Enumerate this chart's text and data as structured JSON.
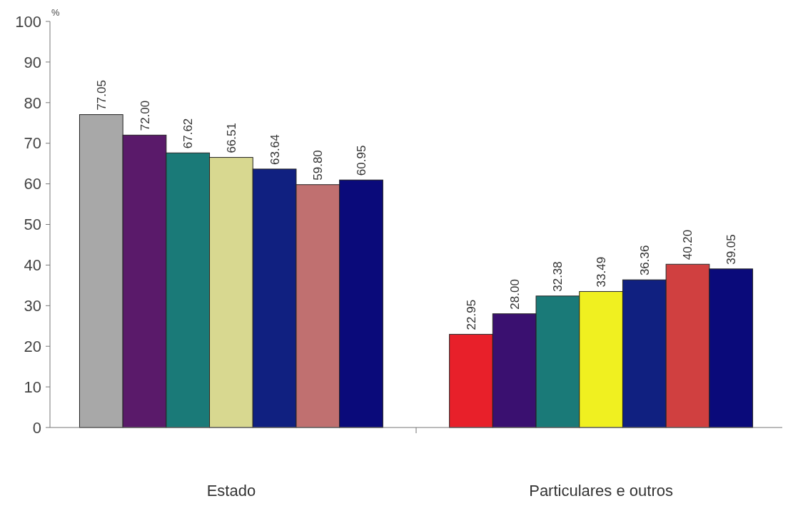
{
  "chart_data": {
    "type": "bar",
    "ylabel": "%",
    "categories": [
      "Estado",
      "Particulares e outros"
    ],
    "ylim": [
      0,
      100
    ],
    "yticks": [
      0,
      10,
      20,
      30,
      40,
      50,
      60,
      70,
      80,
      90,
      100
    ],
    "grid": false,
    "series": [
      {
        "colors": [
          "#a8a8a8",
          "#e8202a"
        ],
        "values": [
          77.05,
          22.95
        ],
        "value_labels": [
          "77.05",
          "22.95"
        ]
      },
      {
        "colors": [
          "#5a1a6a",
          "#3a1070"
        ],
        "values": [
          72.0,
          28.0
        ],
        "value_labels": [
          "72.00",
          "28.00"
        ]
      },
      {
        "colors": [
          "#1a7a78",
          "#1a7a78"
        ],
        "values": [
          67.62,
          32.38
        ],
        "value_labels": [
          "67.62",
          "32.38"
        ]
      },
      {
        "colors": [
          "#d8d890",
          "#f0f020"
        ],
        "values": [
          66.51,
          33.49
        ],
        "value_labels": [
          "66.51",
          "33.49"
        ]
      },
      {
        "colors": [
          "#102080",
          "#102080"
        ],
        "values": [
          63.64,
          36.36
        ],
        "value_labels": [
          "63.64",
          "36.36"
        ]
      },
      {
        "colors": [
          "#c07070",
          "#d04040"
        ],
        "values": [
          59.8,
          40.2
        ],
        "value_labels": [
          "59.80",
          "40.20"
        ]
      },
      {
        "colors": [
          "#0a0a7a",
          "#0a0a7a"
        ],
        "values": [
          60.95,
          39.05
        ],
        "value_labels": [
          "60.95",
          "39.05"
        ]
      }
    ]
  }
}
